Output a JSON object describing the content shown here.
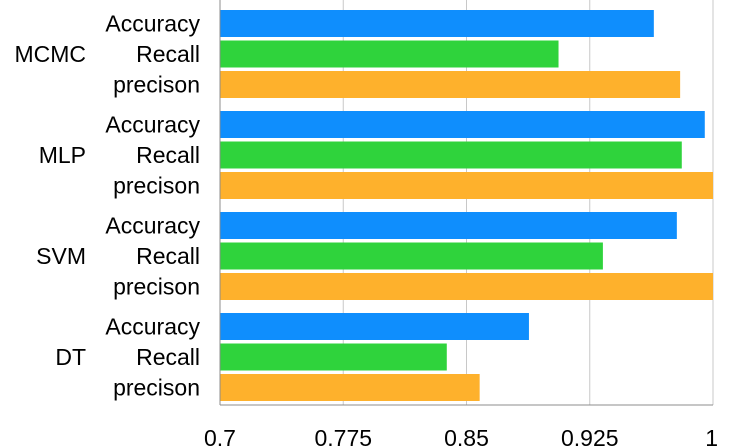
{
  "chart_data": {
    "type": "bar",
    "orientation": "horizontal",
    "title": "",
    "xlabel": "",
    "ylabel": "",
    "xlim": [
      0.7,
      1.0
    ],
    "x_ticks": [
      0.7,
      0.775,
      0.85,
      0.925,
      1.0
    ],
    "x_tick_labels": [
      "0.7",
      "0.775",
      "0.85",
      "0.925",
      "1"
    ],
    "grid": "vertical",
    "legend": "none",
    "groups": [
      {
        "name": "MCMC",
        "bars": [
          {
            "label": "Accuracy",
            "value": 0.964
          },
          {
            "label": "Recall",
            "value": 0.906
          },
          {
            "label": "precison",
            "value": 0.98
          }
        ]
      },
      {
        "name": "MLP",
        "bars": [
          {
            "label": "Accuracy",
            "value": 0.995
          },
          {
            "label": "Recall",
            "value": 0.981
          },
          {
            "label": "precison",
            "value": 1.0
          }
        ]
      },
      {
        "name": "SVM",
        "bars": [
          {
            "label": "Accuracy",
            "value": 0.978
          },
          {
            "label": "Recall",
            "value": 0.933
          },
          {
            "label": "precison",
            "value": 1.0
          }
        ]
      },
      {
        "name": "DT",
        "bars": [
          {
            "label": "Accuracy",
            "value": 0.888
          },
          {
            "label": "Recall",
            "value": 0.838
          },
          {
            "label": "precison",
            "value": 0.858
          }
        ]
      }
    ],
    "colors": {
      "Accuracy": "#0f8efd",
      "Recall": "#2fd33c",
      "precison": "#feb12c",
      "grid": "#c8c8c8",
      "axis": "#8c8c8c"
    }
  }
}
